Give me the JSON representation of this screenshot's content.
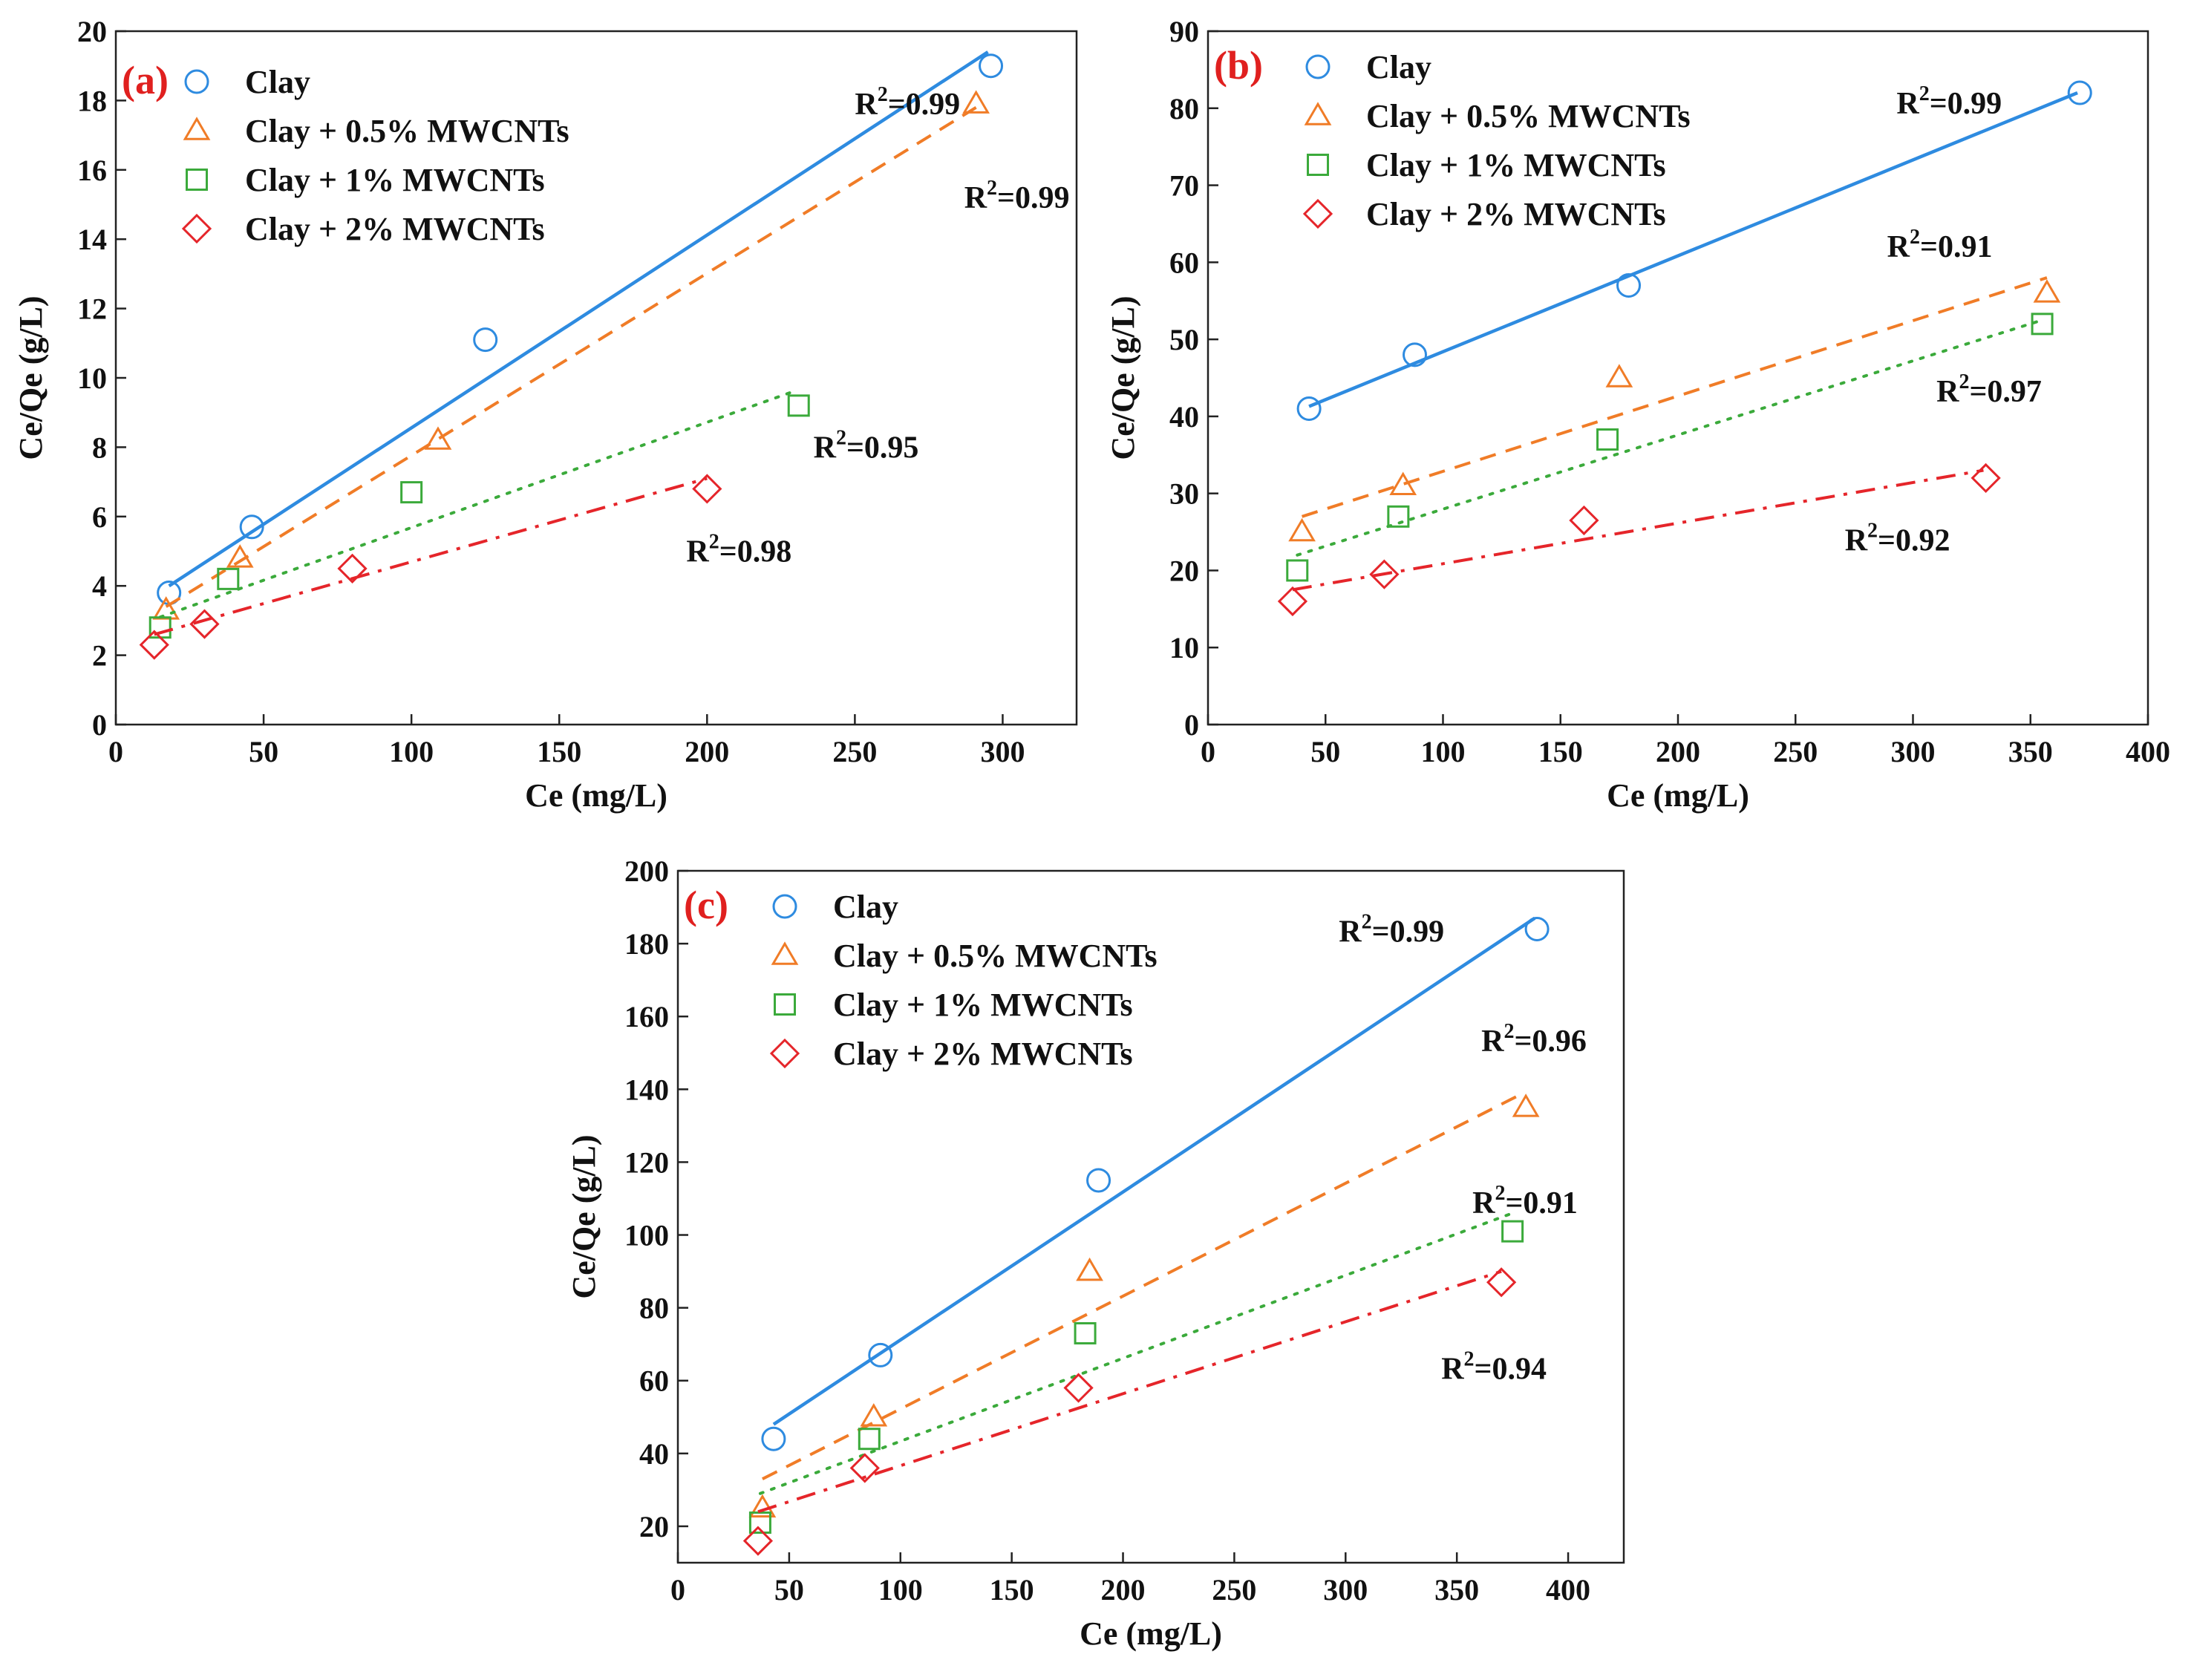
{
  "series_style": [
    {
      "color": "#2E8BE0",
      "marker": "circle",
      "dash": "solid"
    },
    {
      "color": "#F07C27",
      "marker": "triangle",
      "dash": "dashed"
    },
    {
      "color": "#3BAA3B",
      "marker": "square",
      "dash": "dotted"
    },
    {
      "color": "#E5252A",
      "marker": "diamond",
      "dash": "dashdot"
    }
  ],
  "chart_data": [
    {
      "type": "scatter",
      "panel_label": "(a)",
      "xlabel": "Ce (mg/L)",
      "ylabel": "Ce/Qe (g/L)",
      "xlim": [
        0,
        325
      ],
      "ylim": [
        0,
        20
      ],
      "xticks": [
        0,
        50,
        100,
        150,
        200,
        250,
        300
      ],
      "yticks": [
        0,
        2,
        4,
        6,
        8,
        10,
        12,
        14,
        16,
        18,
        20
      ],
      "legend": [
        "Clay",
        "Clay + 0.5% MWCNTs",
        "Clay + 1% MWCNTs",
        "Clay + 2% MWCNTs"
      ],
      "series": [
        {
          "name": "Clay",
          "x": [
            18,
            46,
            125,
            296
          ],
          "y": [
            3.8,
            5.7,
            11.1,
            19.0
          ],
          "fit": [
            [
              18,
              4.0
            ],
            [
              295,
              19.4
            ]
          ],
          "r2": "0.99",
          "r2_at": [
            250,
            17.6
          ]
        },
        {
          "name": "Clay + 0.5% MWCNTs",
          "x": [
            17,
            42,
            109,
            291
          ],
          "y": [
            3.3,
            4.8,
            8.2,
            17.9
          ],
          "fit": [
            [
              17,
              3.4
            ],
            [
              291,
              17.8
            ]
          ],
          "r2": "0.99",
          "r2_at": [
            287,
            14.9
          ]
        },
        {
          "name": "Clay + 1% MWCNTs",
          "x": [
            15,
            38,
            100,
            231
          ],
          "y": [
            2.8,
            4.2,
            6.7,
            9.2
          ],
          "fit": [
            [
              15,
              3.1
            ],
            [
              229,
              9.6
            ]
          ],
          "r2": "0.95",
          "r2_at": [
            236,
            7.7
          ]
        },
        {
          "name": "Clay + 2% MWCNTs",
          "x": [
            13,
            30,
            80,
            200
          ],
          "y": [
            2.3,
            2.9,
            4.5,
            6.8
          ],
          "fit": [
            [
              13,
              2.6
            ],
            [
              200,
              7.1
            ]
          ],
          "r2": "0.98",
          "r2_at": [
            193,
            4.7
          ]
        }
      ]
    },
    {
      "type": "scatter",
      "panel_label": "(b)",
      "xlabel": "Ce (mg/L)",
      "ylabel": "Ce/Qe (g/L)",
      "xlim": [
        0,
        400
      ],
      "ylim": [
        0,
        90
      ],
      "xticks": [
        0,
        50,
        100,
        150,
        200,
        250,
        300,
        350,
        400
      ],
      "yticks": [
        0,
        10,
        20,
        30,
        40,
        50,
        60,
        70,
        80,
        90
      ],
      "legend": [
        "Clay",
        "Clay + 0.5% MWCNTs",
        "Clay + 1% MWCNTs",
        "Clay + 2% MWCNTs"
      ],
      "series": [
        {
          "name": "Clay",
          "x": [
            43,
            88,
            179,
            371
          ],
          "y": [
            41,
            48,
            57,
            82
          ],
          "fit": [
            [
              43,
              41.3
            ],
            [
              370,
              82
            ]
          ],
          "r2": "0.99",
          "r2_at": [
            293,
            79.3
          ]
        },
        {
          "name": "Clay + 0.5% MWCNTs",
          "x": [
            40,
            83,
            175,
            357
          ],
          "y": [
            25,
            31,
            45,
            56
          ],
          "fit": [
            [
              40,
              27
            ],
            [
              357,
              58
            ]
          ],
          "r2": "0.91",
          "r2_at": [
            289,
            60.7
          ]
        },
        {
          "name": "Clay + 1% MWCNTs",
          "x": [
            38,
            81,
            170,
            355
          ],
          "y": [
            20,
            27,
            37,
            52
          ],
          "fit": [
            [
              38,
              22
            ],
            [
              355,
              52.5
            ]
          ],
          "r2": "0.97",
          "r2_at": [
            310,
            41.9
          ]
        },
        {
          "name": "Clay + 2% MWCNTs",
          "x": [
            36,
            75,
            160,
            331
          ],
          "y": [
            16,
            19.5,
            26.5,
            32
          ],
          "fit": [
            [
              36,
              17.5
            ],
            [
              330,
              33
            ]
          ],
          "r2": "0.92",
          "r2_at": [
            271,
            22.6
          ]
        }
      ]
    },
    {
      "type": "scatter",
      "panel_label": "(c)",
      "xlabel": "Ce (mg/L)",
      "ylabel": "Ce/Qe (g/L)",
      "xlim": [
        0,
        425
      ],
      "ylim": [
        10,
        200
      ],
      "xticks": [
        0,
        50,
        100,
        150,
        200,
        250,
        300,
        350,
        400
      ],
      "yticks": [
        20,
        40,
        60,
        80,
        100,
        120,
        140,
        160,
        180,
        200
      ],
      "legend": [
        "Clay",
        "Clay + 0.5% MWCNTs",
        "Clay + 1% MWCNTs",
        "Clay + 2% MWCNTs"
      ],
      "series": [
        {
          "name": "Clay",
          "x": [
            43,
            91,
            189,
            386
          ],
          "y": [
            44,
            67,
            115,
            184
          ],
          "fit": [
            [
              43,
              48
            ],
            [
              385,
              187
            ]
          ],
          "r2": "0.99",
          "r2_at": [
            297,
            180.5
          ]
        },
        {
          "name": "Clay + 0.5% MWCNTs",
          "x": [
            38,
            88,
            185,
            381
          ],
          "y": [
            25,
            50,
            90,
            135
          ],
          "fit": [
            [
              38,
              33
            ],
            [
              380,
              139
            ]
          ],
          "r2": "0.96",
          "r2_at": [
            361,
            150.5
          ]
        },
        {
          "name": "Clay + 1% MWCNTs",
          "x": [
            37,
            86,
            183,
            375
          ],
          "y": [
            21,
            44,
            73,
            101
          ],
          "fit": [
            [
              37,
              29
            ],
            [
              375,
              106
            ]
          ],
          "r2": "0.91",
          "r2_at": [
            357,
            106
          ]
        },
        {
          "name": "Clay + 2% MWCNTs",
          "x": [
            36,
            84,
            180,
            370
          ],
          "y": [
            16,
            36,
            58,
            87
          ],
          "fit": [
            [
              36,
              24
            ],
            [
              370,
              90
            ]
          ],
          "r2": "0.94",
          "r2_at": [
            343,
            60.5
          ]
        }
      ]
    }
  ]
}
